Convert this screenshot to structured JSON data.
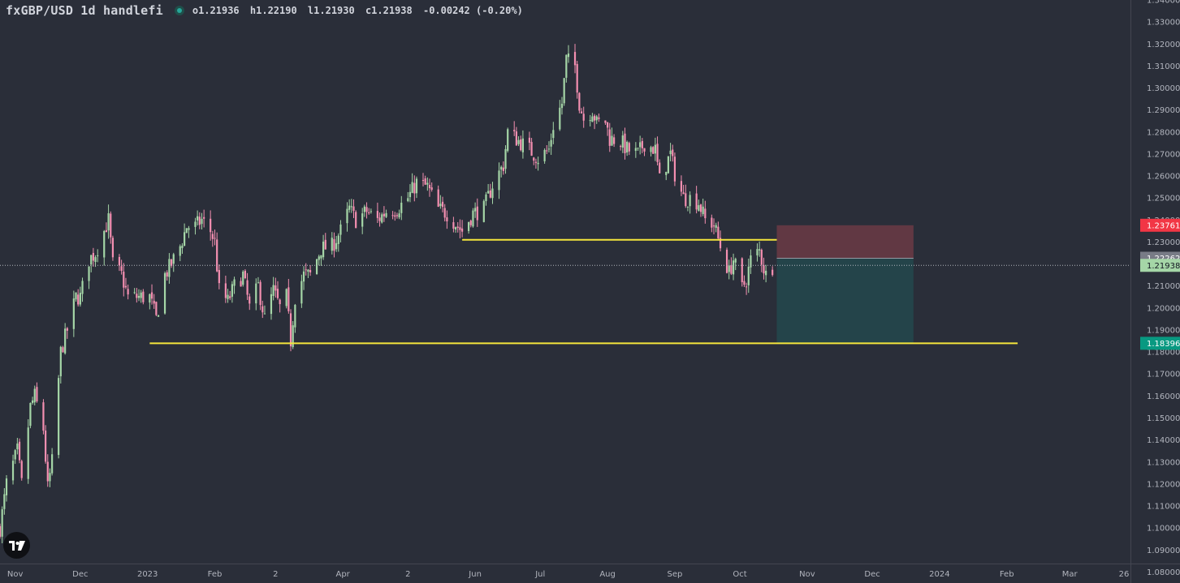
{
  "header": {
    "symbol_line": "fxGBP/USD 1d handlefi",
    "open": "o1.21936",
    "high": "h1.22190",
    "low": "l1.21930",
    "close": "c1.21938",
    "change": "-0.00242 (-0.20%)"
  },
  "colors": {
    "background": "#2a2e39",
    "candle_up": "#a5d6a7",
    "candle_down": "#f48fb1",
    "support_line": "#f5e63c",
    "stop_zone": "#6b3a45",
    "target_zone": "#23474c",
    "axis_text": "#b2b5be"
  },
  "chart_data": {
    "type": "candlestick",
    "scale": "linear",
    "grid": false,
    "ylim": [
      1.075,
      1.34
    ],
    "y_ticks": [
      1.08,
      1.09,
      1.1,
      1.11,
      1.12,
      1.13,
      1.14,
      1.15,
      1.16,
      1.17,
      1.18,
      1.19,
      1.2,
      1.21,
      1.22,
      1.23,
      1.24,
      1.25,
      1.26,
      1.27,
      1.28,
      1.29,
      1.3,
      1.31,
      1.32,
      1.33,
      1.34
    ],
    "y_tick_labels": [
      "1.08000",
      "1.09000",
      "1.10000",
      "1.11000",
      "1.12000",
      "1.13000",
      "1.14000",
      "1.15000",
      "1.16000",
      "1.17000",
      "1.18000",
      "1.19000",
      "1.20000",
      "1.21000",
      "1.22000",
      "1.23000",
      "1.24000",
      "1.25000",
      "1.26000",
      "1.27000",
      "1.28000",
      "1.29000",
      "1.30000",
      "1.31000",
      "1.32000",
      "1.33000",
      "1.34000"
    ],
    "xlim": [
      "2022-10-25",
      "2024-03-29"
    ],
    "x_ticks": [
      {
        "date": "2022-11-01",
        "label": "Nov"
      },
      {
        "date": "2022-12-01",
        "label": "Dec"
      },
      {
        "date": "2023-01-01",
        "label": "2023"
      },
      {
        "date": "2023-02-01",
        "label": "Feb"
      },
      {
        "date": "2023-03-01",
        "label": "2"
      },
      {
        "date": "2023-04-01",
        "label": "Apr"
      },
      {
        "date": "2023-05-01",
        "label": "2"
      },
      {
        "date": "2023-06-01",
        "label": "Jun"
      },
      {
        "date": "2023-07-01",
        "label": "Jul"
      },
      {
        "date": "2023-08-01",
        "label": "Aug"
      },
      {
        "date": "2023-09-01",
        "label": "Sep"
      },
      {
        "date": "2023-10-01",
        "label": "Oct"
      },
      {
        "date": "2023-11-01",
        "label": "Nov"
      },
      {
        "date": "2023-12-01",
        "label": "Dec"
      },
      {
        "date": "2024-01-01",
        "label": "2024"
      },
      {
        "date": "2024-02-01",
        "label": "Feb"
      },
      {
        "date": "2024-03-01",
        "label": "Mar"
      },
      {
        "date": "2024-03-26",
        "label": "26"
      }
    ],
    "close_path": [
      [
        "2022-10-25",
        1.1
      ],
      [
        "2022-10-28",
        1.12
      ],
      [
        "2022-11-02",
        1.135
      ],
      [
        "2022-11-04",
        1.12
      ],
      [
        "2022-11-08",
        1.155
      ],
      [
        "2022-11-10",
        1.16
      ],
      [
        "2022-11-14",
        1.145
      ],
      [
        "2022-11-16",
        1.118
      ],
      [
        "2022-11-18",
        1.13
      ],
      [
        "2022-11-22",
        1.18
      ],
      [
        "2022-11-25",
        1.19
      ],
      [
        "2022-11-29",
        1.205
      ],
      [
        "2022-12-01",
        1.205
      ],
      [
        "2022-12-05",
        1.222
      ],
      [
        "2022-12-08",
        1.225
      ],
      [
        "2022-12-12",
        1.235
      ],
      [
        "2022-12-14",
        1.24
      ],
      [
        "2022-12-16",
        1.22
      ],
      [
        "2022-12-20",
        1.215
      ],
      [
        "2022-12-23",
        1.205
      ],
      [
        "2022-12-28",
        1.205
      ],
      [
        "2023-01-02",
        1.205
      ],
      [
        "2023-01-05",
        1.195
      ],
      [
        "2023-01-09",
        1.215
      ],
      [
        "2023-01-12",
        1.22
      ],
      [
        "2023-01-16",
        1.228
      ],
      [
        "2023-01-19",
        1.237
      ],
      [
        "2023-01-23",
        1.237
      ],
      [
        "2023-01-26",
        1.24
      ],
      [
        "2023-01-30",
        1.235
      ],
      [
        "2023-02-01",
        1.23
      ],
      [
        "2023-02-03",
        1.208
      ],
      [
        "2023-02-07",
        1.203
      ],
      [
        "2023-02-10",
        1.21
      ],
      [
        "2023-02-14",
        1.215
      ],
      [
        "2023-02-17",
        1.2
      ],
      [
        "2023-02-21",
        1.21
      ],
      [
        "2023-02-24",
        1.195
      ],
      [
        "2023-02-28",
        1.208
      ],
      [
        "2023-03-03",
        1.2
      ],
      [
        "2023-03-06",
        1.205
      ],
      [
        "2023-03-08",
        1.185
      ],
      [
        "2023-03-10",
        1.205
      ],
      [
        "2023-03-14",
        1.215
      ],
      [
        "2023-03-17",
        1.215
      ],
      [
        "2023-03-22",
        1.227
      ],
      [
        "2023-03-27",
        1.228
      ],
      [
        "2023-03-31",
        1.235
      ],
      [
        "2023-04-04",
        1.245
      ],
      [
        "2023-04-07",
        1.24
      ],
      [
        "2023-04-12",
        1.244
      ],
      [
        "2023-04-17",
        1.24
      ],
      [
        "2023-04-21",
        1.244
      ],
      [
        "2023-04-26",
        1.245
      ],
      [
        "2023-05-01",
        1.25
      ],
      [
        "2023-05-05",
        1.257
      ],
      [
        "2023-05-10",
        1.255
      ],
      [
        "2023-05-15",
        1.245
      ],
      [
        "2023-05-19",
        1.243
      ],
      [
        "2023-05-24",
        1.237
      ],
      [
        "2023-05-26",
        1.235
      ],
      [
        "2023-05-31",
        1.243
      ],
      [
        "2023-06-05",
        1.245
      ],
      [
        "2023-06-09",
        1.256
      ],
      [
        "2023-06-14",
        1.265
      ],
      [
        "2023-06-16",
        1.28
      ],
      [
        "2023-06-21",
        1.276
      ],
      [
        "2023-06-26",
        1.272
      ],
      [
        "2023-06-30",
        1.268
      ],
      [
        "2023-07-05",
        1.272
      ],
      [
        "2023-07-07",
        1.283
      ],
      [
        "2023-07-11",
        1.293
      ],
      [
        "2023-07-13",
        1.313
      ],
      [
        "2023-07-17",
        1.31
      ],
      [
        "2023-07-19",
        1.293
      ],
      [
        "2023-07-21",
        1.286
      ],
      [
        "2023-07-25",
        1.29
      ],
      [
        "2023-07-27",
        1.284
      ],
      [
        "2023-07-31",
        1.285
      ],
      [
        "2023-08-02",
        1.277
      ],
      [
        "2023-08-07",
        1.276
      ],
      [
        "2023-08-10",
        1.272
      ],
      [
        "2023-08-15",
        1.27
      ],
      [
        "2023-08-18",
        1.275
      ],
      [
        "2023-08-23",
        1.272
      ],
      [
        "2023-08-25",
        1.258
      ],
      [
        "2023-08-30",
        1.27
      ],
      [
        "2023-09-01",
        1.261
      ],
      [
        "2023-09-05",
        1.25
      ],
      [
        "2023-09-08",
        1.25
      ],
      [
        "2023-09-12",
        1.248
      ],
      [
        "2023-09-15",
        1.24
      ],
      [
        "2023-09-19",
        1.238
      ],
      [
        "2023-09-22",
        1.228
      ],
      [
        "2023-09-26",
        1.216
      ],
      [
        "2023-09-28",
        1.222
      ],
      [
        "2023-10-02",
        1.209
      ],
      [
        "2023-10-04",
        1.213
      ],
      [
        "2023-10-06",
        1.222
      ],
      [
        "2023-10-10",
        1.226
      ],
      [
        "2023-10-12",
        1.218
      ],
      [
        "2023-10-13",
        1.215
      ],
      [
        "2023-10-16",
        1.219
      ]
    ],
    "annotations": {
      "support_lines": [
        {
          "start": "2023-01-02",
          "end": "2024-02-06",
          "price": 1.18396
        },
        {
          "start": "2023-05-26",
          "end": "2023-10-18",
          "price": 1.231
        }
      ],
      "position": {
        "type": "short",
        "start": "2023-10-18",
        "end": "2023-12-20",
        "entry": 1.22262,
        "stop": 1.23761,
        "target": 1.18396
      },
      "last_price": 1.21938
    },
    "price_labels": [
      {
        "text": "1.23761",
        "value": 1.23761,
        "color": "#f23645"
      },
      {
        "text": "1.22262",
        "value": 1.22262,
        "color": "#787b86"
      },
      {
        "text": "1.21938",
        "value": 1.21938,
        "color": "#a5d6a7"
      },
      {
        "text": "1.18396",
        "value": 1.18396,
        "color": "#089981"
      }
    ]
  }
}
